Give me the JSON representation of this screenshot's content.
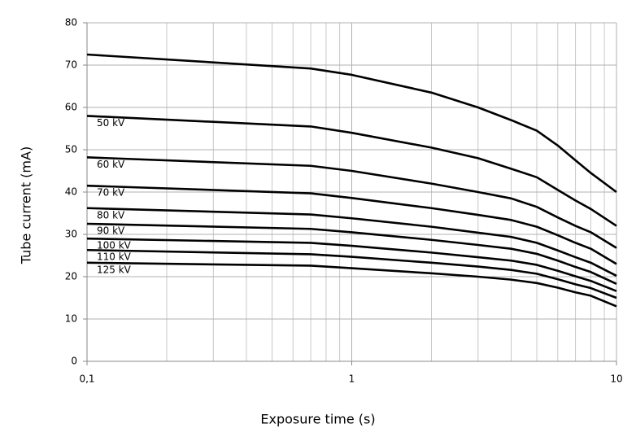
{
  "chart_data": {
    "type": "line",
    "xlabel": "Exposure time (s)",
    "ylabel": "Tube current (mA)",
    "x": [
      0.1,
      0.7,
      1,
      2,
      3,
      4,
      5,
      6,
      7,
      8,
      10
    ],
    "xlog": true,
    "xlim": [
      0.1,
      10
    ],
    "xticks": [
      {
        "value": 0.1,
        "label": "0,1"
      },
      1,
      10
    ],
    "xgrid_minor": [
      0.2,
      0.3,
      0.4,
      0.5,
      0.6,
      0.7,
      0.8,
      0.9,
      2,
      3,
      4,
      5,
      6,
      7,
      8,
      9
    ],
    "ylim": [
      0,
      80
    ],
    "yticks": [
      0,
      10,
      20,
      30,
      40,
      50,
      60,
      70,
      80
    ],
    "grid": true,
    "series": [
      {
        "color": "#000000",
        "values": [
          72.5,
          69.2,
          67.7,
          63.5,
          60,
          57,
          54.5,
          51,
          47.5,
          44.5,
          40
        ]
      },
      {
        "name": "50 kV",
        "color": "#000000",
        "values": [
          58,
          55.5,
          54,
          50.5,
          48,
          45.5,
          43.5,
          40.5,
          38,
          36,
          32
        ]
      },
      {
        "name": "60 kV",
        "color": "#000000",
        "values": [
          48.2,
          46.2,
          45,
          42,
          40,
          38.5,
          36.5,
          34,
          32,
          30.5,
          26.8
        ]
      },
      {
        "name": "70 kV",
        "color": "#000000",
        "values": [
          41.5,
          39.7,
          38.6,
          36.2,
          34.6,
          33.4,
          31.8,
          29.8,
          28,
          26.6,
          23
        ]
      },
      {
        "name": "80 kV",
        "color": "#000000",
        "values": [
          36.2,
          34.7,
          33.8,
          31.8,
          30.4,
          29.4,
          28,
          26.2,
          24.6,
          23.3,
          20.2
        ]
      },
      {
        "name": "90 kV",
        "color": "#000000",
        "values": [
          32.5,
          31.3,
          30.5,
          28.7,
          27.5,
          26.6,
          25.4,
          23.8,
          22.3,
          21.1,
          18.3
        ]
      },
      {
        "name": "100 kV",
        "color": "#000000",
        "values": [
          29,
          28,
          27.3,
          25.7,
          24.6,
          23.8,
          22.8,
          21.4,
          20.1,
          19,
          16.6
        ]
      },
      {
        "name": "110 kV",
        "color": "#000000",
        "values": [
          26.3,
          25.3,
          24.7,
          23.3,
          22.4,
          21.6,
          20.7,
          19.4,
          18.2,
          17.3,
          15
        ]
      },
      {
        "name": "125 kV",
        "color": "#000000",
        "values": [
          23.3,
          22.6,
          22,
          20.8,
          20,
          19.3,
          18.5,
          17.4,
          16.3,
          15.5,
          13
        ]
      }
    ]
  }
}
